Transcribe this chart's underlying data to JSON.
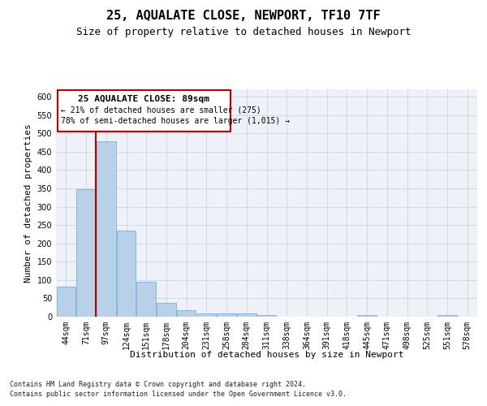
{
  "title1": "25, AQUALATE CLOSE, NEWPORT, TF10 7TF",
  "title2": "Size of property relative to detached houses in Newport",
  "xlabel": "Distribution of detached houses by size in Newport",
  "ylabel": "Number of detached properties",
  "categories": [
    "44sqm",
    "71sqm",
    "97sqm",
    "124sqm",
    "151sqm",
    "178sqm",
    "204sqm",
    "231sqm",
    "258sqm",
    "284sqm",
    "311sqm",
    "338sqm",
    "364sqm",
    "391sqm",
    "418sqm",
    "445sqm",
    "471sqm",
    "498sqm",
    "525sqm",
    "551sqm",
    "578sqm"
  ],
  "values": [
    83,
    348,
    478,
    235,
    96,
    37,
    18,
    8,
    8,
    8,
    4,
    0,
    0,
    0,
    0,
    5,
    0,
    0,
    0,
    5,
    0
  ],
  "bar_color": "#b8d0e8",
  "bar_edge_color": "#7aafd4",
  "highlight_color": "#c00000",
  "ylim": [
    0,
    620
  ],
  "yticks": [
    0,
    50,
    100,
    150,
    200,
    250,
    300,
    350,
    400,
    450,
    500,
    550,
    600
  ],
  "annotation_title": "25 AQUALATE CLOSE: 89sqm",
  "annotation_line1": "← 21% of detached houses are smaller (275)",
  "annotation_line2": "78% of semi-detached houses are larger (1,015) →",
  "annotation_box_color": "#c00000",
  "footer_line1": "Contains HM Land Registry data © Crown copyright and database right 2024.",
  "footer_line2": "Contains public sector information licensed under the Open Government Licence v3.0.",
  "bg_color": "#eef2f8",
  "grid_color": "#c8cdd8",
  "title1_fontsize": 11,
  "title2_fontsize": 9,
  "ylabel_fontsize": 8,
  "xlabel_fontsize": 8,
  "tick_fontsize": 7,
  "ann_title_fontsize": 8,
  "ann_text_fontsize": 7,
  "footer_fontsize": 6
}
